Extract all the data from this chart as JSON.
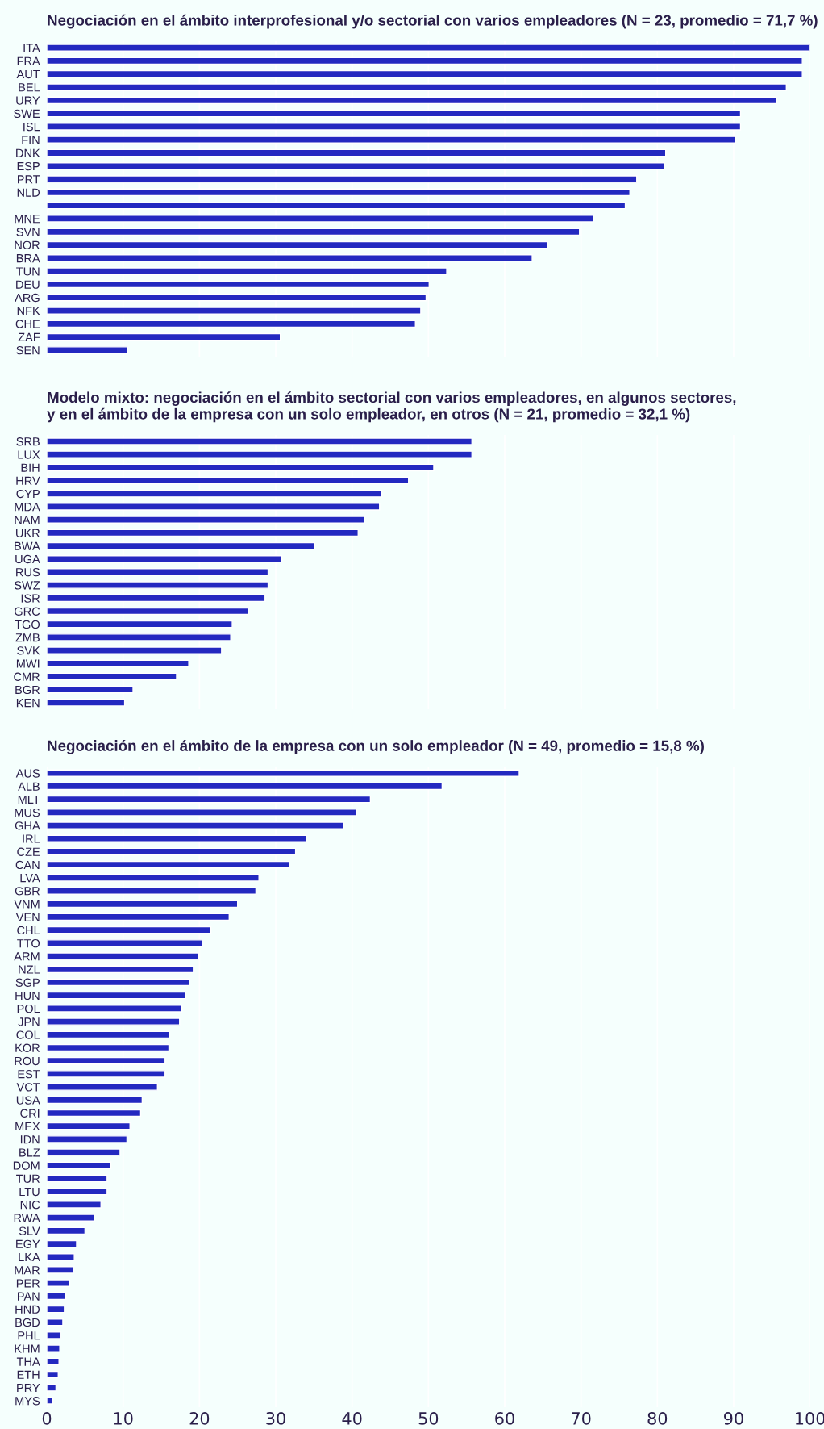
{
  "chart_data": [
    {
      "type": "bar",
      "orientation": "horizontal",
      "title": "Negociación en el ámbito interprofesional y/o sectorial con varios empleadores (N = 23, promedio = 71,7 %)",
      "categories": [
        "ITA",
        "FRA",
        "AUT",
        "BEL",
        "URY",
        "SWE",
        "ISL",
        "FIN",
        "DNK",
        "ESP",
        "PRT",
        "NLD",
        null,
        "MNE",
        "SVN",
        "NOR",
        "BRA",
        "TUN",
        "DEU",
        "ARG",
        "NFK",
        "CHE",
        "ZAF",
        "SEN"
      ],
      "values": [
        100,
        99.0,
        99.0,
        96.9,
        95.6,
        90.9,
        90.9,
        90.2,
        81.1,
        80.9,
        77.3,
        76.4,
        75.8,
        71.6,
        69.8,
        65.6,
        63.6,
        52.4,
        50.1,
        49.7,
        49.0,
        48.3,
        30.6,
        10.6
      ],
      "color": "#2329c0",
      "xlim": [
        0,
        100
      ],
      "xticks": [
        0,
        10,
        20,
        30,
        40,
        50,
        60,
        70,
        80,
        90,
        100
      ],
      "grid": "x",
      "tick_labels": "y"
    },
    {
      "type": "bar",
      "orientation": "horizontal",
      "title": "Modelo mixto: negociación en el ámbito sectorial con varios empleadores, en algunos sectores,\ny en el ámbito de la empresa con un solo empleador, en otros (N = 21, promedio = 32,1 %)",
      "categories": [
        "SRB",
        "LUX",
        "BIH",
        "HRV",
        "CYP",
        "MDA",
        "NAM",
        "UKR",
        "BWA",
        "UGA",
        "RUS",
        "SWZ",
        "ISR",
        "GRC",
        "TGO",
        "ZMB",
        "SVK",
        "MWI",
        "CMR",
        "BGR",
        "KEN"
      ],
      "values": [
        55.7,
        55.7,
        50.7,
        47.4,
        43.9,
        43.6,
        41.6,
        40.8,
        35.1,
        30.8,
        29.0,
        29.0,
        28.6,
        26.4,
        24.3,
        24.1,
        22.9,
        18.6,
        17.0,
        11.3,
        10.2
      ],
      "color": "#2329c0",
      "xlim": [
        0,
        100
      ],
      "xticks": [
        0,
        10,
        20,
        30,
        40,
        50,
        60,
        70,
        80,
        90,
        100
      ],
      "grid": "x",
      "tick_labels": "y"
    },
    {
      "type": "bar",
      "orientation": "horizontal",
      "title": "Negociación en el ámbito de la empresa con un solo empleador (N = 49, promedio = 15,8 %)",
      "categories": [
        "AUS",
        "ALB",
        "MLT",
        "MUS",
        "GHA",
        "IRL",
        "CZE",
        "CAN",
        "LVA",
        "GBR",
        "VNM",
        "VEN",
        "CHL",
        "TTO",
        "ARM",
        "NZL",
        "SGP",
        "HUN",
        "POL",
        "JPN",
        "COL",
        "KOR",
        "ROU",
        "EST",
        "VCT",
        "USA",
        "CRI",
        "MEX",
        "IDN",
        "BLZ",
        "DOM",
        "TUR",
        "LTU",
        "NIC",
        "RWA",
        "SLV",
        "EGY",
        "LKA",
        "MAR",
        "PER",
        "PAN",
        "HND",
        "BGD",
        "PHL",
        "KHM",
        "THA",
        "ETH",
        "PRY",
        "MYS"
      ],
      "values": [
        61.9,
        51.8,
        42.4,
        40.6,
        38.9,
        34.0,
        32.6,
        31.8,
        27.8,
        27.4,
        25.0,
        23.9,
        21.5,
        20.4,
        19.9,
        19.2,
        18.7,
        18.2,
        17.7,
        17.4,
        16.1,
        16.0,
        15.5,
        15.5,
        14.5,
        12.5,
        12.3,
        10.9,
        10.5,
        9.6,
        8.4,
        7.9,
        7.9,
        7.1,
        6.2,
        5.0,
        3.9,
        3.6,
        3.5,
        3.0,
        2.5,
        2.3,
        2.1,
        1.8,
        1.7,
        1.6,
        1.5,
        1.2,
        0.8
      ],
      "color": "#2329c0",
      "xlim": [
        0,
        100
      ],
      "xticks": [
        0,
        10,
        20,
        30,
        40,
        50,
        60,
        70,
        80,
        90,
        100
      ],
      "grid": "x"
    }
  ]
}
